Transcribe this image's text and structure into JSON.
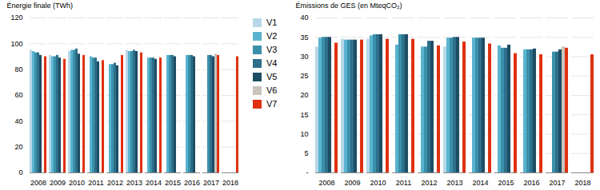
{
  "chart_data": [
    {
      "type": "bar",
      "categories": [
        "2008",
        "2009",
        "2010",
        "2011",
        "2012",
        "2013",
        "2014",
        "2015",
        "2016",
        "2017",
        "2018"
      ],
      "series": [
        {
          "name": "V1",
          "color": "#b8d8e8",
          "values": [
            95,
            91,
            94,
            null,
            null,
            95,
            null,
            null,
            null,
            null,
            null
          ]
        },
        {
          "name": "V2",
          "color": "#5ab4d0",
          "values": [
            94,
            90,
            95,
            90,
            84,
            94,
            89,
            91,
            91,
            null,
            null
          ]
        },
        {
          "name": "V3",
          "color": "#3a90aa",
          "values": [
            93,
            90,
            95,
            89,
            84,
            94,
            89,
            91,
            91,
            91,
            null
          ]
        },
        {
          "name": "V4",
          "color": "#2e6f8a",
          "values": [
            93,
            91,
            96,
            89,
            85,
            95,
            89,
            91,
            91,
            91,
            null
          ]
        },
        {
          "name": "V5",
          "color": "#1d4d65",
          "values": [
            91,
            89,
            92,
            86,
            83,
            94,
            88,
            90,
            90,
            90,
            null
          ]
        },
        {
          "name": "V6",
          "color": "#c8c4bc",
          "values": [
            null,
            null,
            null,
            null,
            null,
            null,
            null,
            null,
            null,
            92,
            null
          ]
        },
        {
          "name": "V7",
          "color": "#e03010",
          "values": [
            90,
            88,
            91,
            87,
            91,
            93,
            89,
            null,
            null,
            91,
            90
          ]
        }
      ],
      "ylabel": "Énergie finale (TWh)",
      "ylim": [
        0,
        120
      ],
      "yticks": [
        0,
        20,
        40,
        60,
        80,
        100,
        120
      ],
      "grid": true,
      "legend": "right"
    },
    {
      "type": "bar",
      "categories": [
        "2008",
        "2009",
        "2010",
        "2011",
        "2012",
        "2013",
        "2014",
        "2015",
        "2016",
        "2017",
        "2018"
      ],
      "series": [
        {
          "name": "V1",
          "color": "#b8d8e8",
          "values": [
            32.5,
            34.5,
            34.5,
            null,
            null,
            32.5,
            null,
            null,
            null,
            null,
            null
          ]
        },
        {
          "name": "V2",
          "color": "#5ab4d0",
          "values": [
            34.8,
            34.3,
            35.4,
            33.0,
            32.5,
            34.8,
            34.8,
            32.8,
            31.8,
            null,
            null
          ]
        },
        {
          "name": "V3",
          "color": "#3a90aa",
          "values": [
            35.0,
            34.3,
            35.7,
            35.7,
            32.5,
            34.8,
            34.8,
            32.2,
            31.8,
            31.2,
            null
          ]
        },
        {
          "name": "V4",
          "color": "#2e6f8a",
          "values": [
            35.0,
            34.3,
            35.7,
            35.7,
            34.0,
            35.0,
            34.8,
            32.2,
            31.8,
            31.2,
            null
          ]
        },
        {
          "name": "V5",
          "color": "#1d4d65",
          "values": [
            35.0,
            34.3,
            35.7,
            35.7,
            34.0,
            35.0,
            34.8,
            33.0,
            32.0,
            31.8,
            null
          ]
        },
        {
          "name": "V6",
          "color": "#c8c4bc",
          "values": [
            null,
            null,
            null,
            null,
            null,
            null,
            null,
            null,
            null,
            32.5,
            null
          ]
        },
        {
          "name": "V7",
          "color": "#e03010",
          "values": [
            33.5,
            34.3,
            34.5,
            34.5,
            32.8,
            33.8,
            33.3,
            30.8,
            30.5,
            32.2,
            30.5
          ]
        }
      ],
      "ylabel": "Émissions de GES (en MteqCO₂)",
      "ylim": [
        0,
        40
      ],
      "yticks": [
        {
          "value": 0,
          "label": "-"
        },
        5,
        10,
        15,
        20,
        25,
        30,
        35,
        40
      ],
      "grid": true
    }
  ]
}
